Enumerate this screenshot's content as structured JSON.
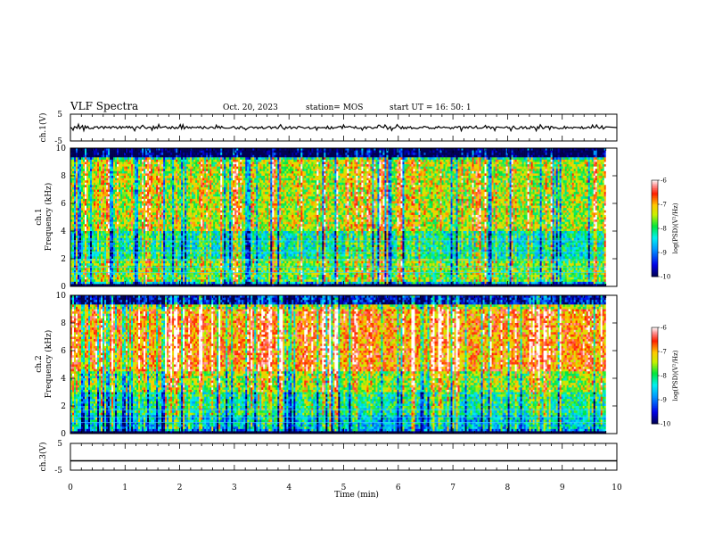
{
  "header": {
    "title": "VLF Spectra",
    "date": "Oct. 20, 2023",
    "station": "station= MOS",
    "start": "start  UT =   16: 50: 1"
  },
  "chart_data": [
    {
      "type": "line",
      "name": "ch1-voltage",
      "ylabel": "ch.1(V)",
      "yticks": [
        "5",
        "-5"
      ],
      "ylim": [
        -5,
        5
      ],
      "xlim": [
        0,
        10
      ],
      "level": 0,
      "noise": 0.5
    },
    {
      "type": "heatmap",
      "name": "ch1-spectrogram",
      "ylabel_top": "ch.1",
      "ylabel": "Frequency (kHz)",
      "yticks": [
        "0",
        "2",
        "4",
        "6",
        "8",
        "10"
      ],
      "ylim": [
        0,
        10
      ],
      "xlim": [
        0,
        10
      ],
      "data_end_min": 9.8,
      "colorbar": {
        "label": "log(PSD)(V²/Hz)",
        "ticks": [
          "-6",
          "-7",
          "-8",
          "-9",
          "-10"
        ],
        "range": [
          -10,
          -6
        ]
      }
    },
    {
      "type": "heatmap",
      "name": "ch2-spectrogram",
      "ylabel_top": "ch.2",
      "ylabel": "Frequency (kHz)",
      "yticks": [
        "0",
        "2",
        "4",
        "6",
        "8",
        "10"
      ],
      "ylim": [
        0,
        10
      ],
      "xlim": [
        0,
        10
      ],
      "data_end_min": 9.8,
      "colorbar": {
        "label": "log(PSD)(V²/Hz)",
        "ticks": [
          "-6",
          "-7",
          "-8",
          "-9",
          "-10"
        ],
        "range": [
          -10,
          -6
        ]
      }
    },
    {
      "type": "line",
      "name": "ch3-voltage",
      "ylabel": "ch.3(V)",
      "yticks": [
        "5",
        "-5"
      ],
      "ylim": [
        -5,
        5
      ],
      "xlim": [
        0,
        10
      ],
      "level": -1.5,
      "noise": 0
    }
  ],
  "xaxis": {
    "label": "Time  (min)",
    "ticks": [
      "0",
      "1",
      "2",
      "3",
      "4",
      "5",
      "6",
      "7",
      "8",
      "9",
      "10"
    ]
  }
}
